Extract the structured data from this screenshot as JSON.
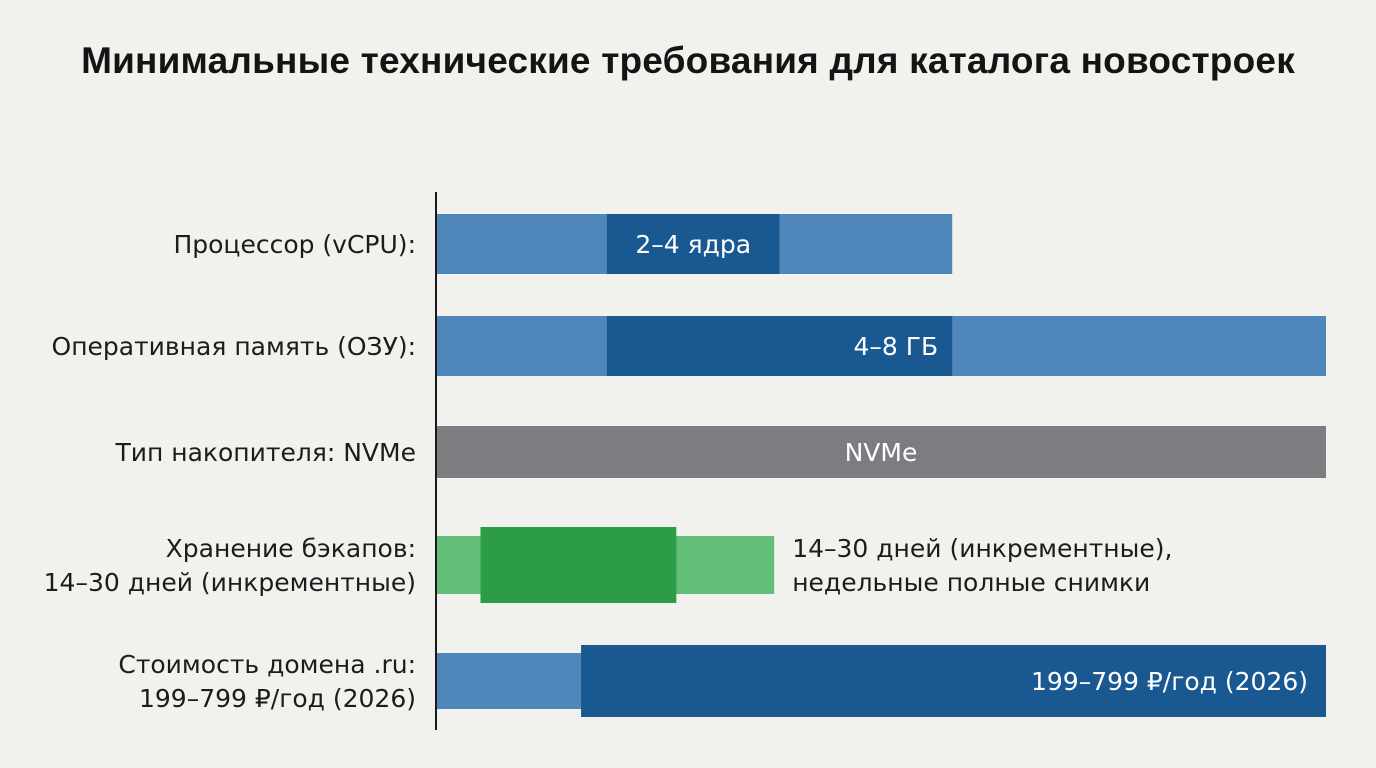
{
  "chart_data": {
    "type": "bar",
    "orientation": "horizontal",
    "title": "Минимальные технические требования для каталога новостроек",
    "xlim": [
      0,
      10
    ],
    "grid": false,
    "legend": "none",
    "colors": {
      "blue_light": "#4f87ba",
      "blue_dark": "#1a5892",
      "gray": "#7b7d80",
      "green_light": "#63bf78",
      "green_dark": "#2c9c48",
      "background": "#f1f1ee"
    },
    "categories": [
      {
        "label_lines": [
          "Процессор (vCPU):"
        ],
        "outer": [
          0,
          5.8
        ],
        "inner": [
          1.92,
          3.86
        ],
        "value_label": "2–4 ядра",
        "color": "blue"
      },
      {
        "label_lines": [
          "Оперативная память (ОЗУ):"
        ],
        "outer": [
          0,
          10
        ],
        "inner": [
          1.92,
          5.8
        ],
        "value_label": "4–8 ГБ",
        "color": "blue"
      },
      {
        "label_lines": [
          "Тип накопителя: NVMe"
        ],
        "outer": [
          0,
          10
        ],
        "inner": null,
        "value_label": "NVMe",
        "color": "gray"
      },
      {
        "label_lines": [
          "Хранение бэкапов:",
          "14–30 дней (инкрементные)"
        ],
        "outer": [
          0,
          3.8
        ],
        "inner": [
          0.5,
          2.7
        ],
        "value_label": "",
        "note_lines": [
          "14–30 дней (инкрементные),",
          "недельные полные снимки"
        ],
        "color": "green"
      },
      {
        "label_lines": [
          "Стоимость домена .ru:",
          "199–799 ₽/год (2026)"
        ],
        "outer": [
          0,
          10
        ],
        "inner": [
          1.63,
          10
        ],
        "value_label": "199–799 ₽/год (2026)",
        "color": "blue"
      }
    ]
  }
}
